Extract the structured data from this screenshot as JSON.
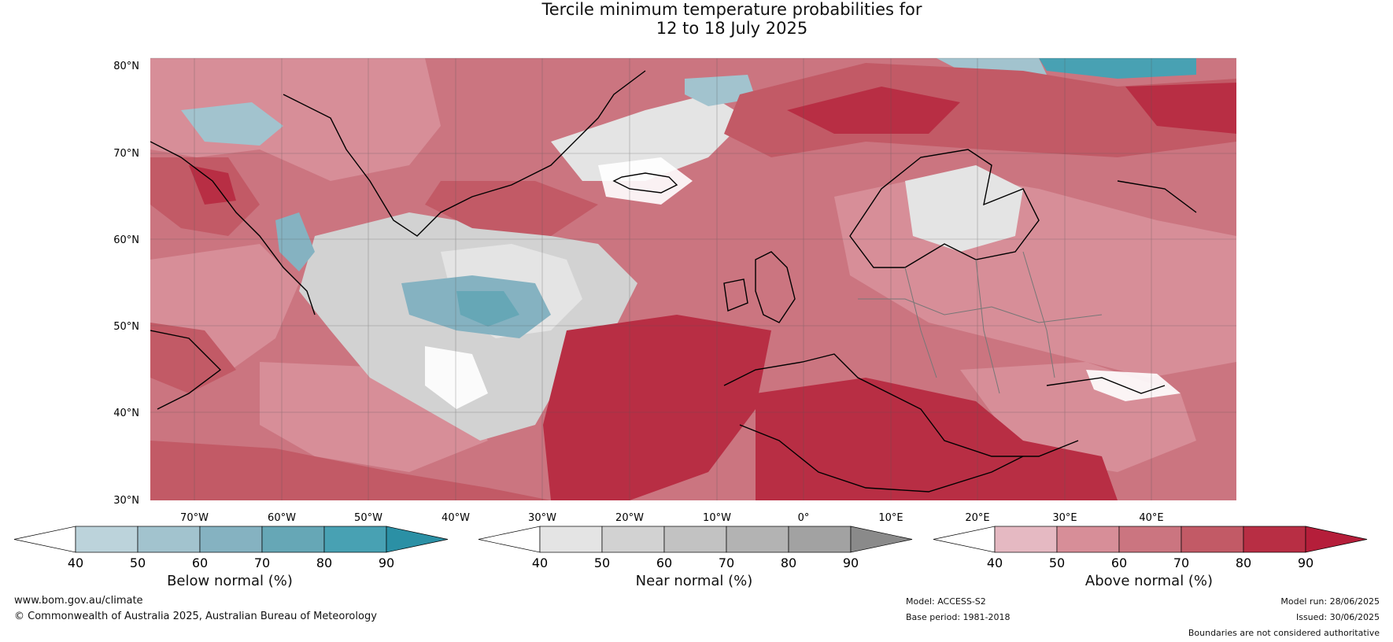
{
  "title_line1": "Tercile minimum temperature probabilities for",
  "title_line2": "12 to 18 July 2025",
  "lat_ticks": [
    "80°N",
    "70°N",
    "60°N",
    "50°N",
    "40°N",
    "30°N"
  ],
  "lon_ticks": [
    "70°W",
    "60°W",
    "50°W",
    "40°W",
    "30°W",
    "20°W",
    "10°W",
    "0°",
    "10°E",
    "20°E",
    "30°E",
    "40°E"
  ],
  "colorbars": [
    {
      "label": "Below normal (%)",
      "ticks": [
        "40",
        "50",
        "60",
        "70",
        "80",
        "90"
      ],
      "colors": [
        "#ffffff",
        "#bcd3db",
        "#a2c3ce",
        "#85b2c1",
        "#66a7b6",
        "#48a1b3",
        "#2b90a5"
      ]
    },
    {
      "label": "Near normal (%)",
      "ticks": [
        "40",
        "50",
        "60",
        "70",
        "80",
        "90"
      ],
      "colors": [
        "#ffffff",
        "#e4e4e4",
        "#d2d2d2",
        "#c2c2c2",
        "#b3b3b3",
        "#a2a2a2",
        "#8a8a8a"
      ]
    },
    {
      "label": "Above normal (%)",
      "ticks": [
        "40",
        "50",
        "60",
        "70",
        "80",
        "90"
      ],
      "colors": [
        "#ffffff",
        "#e5b9c2",
        "#d78e98",
        "#cb7580",
        "#c25a66",
        "#b82e44",
        "#b51e3a"
      ]
    }
  ],
  "footer": {
    "website": "www.bom.gov.au/climate",
    "copyright": "© Commonwealth of Australia 2025, Australian Bureau of Meteorology",
    "model": "Model: ACCESS-S2",
    "base_period": "Base period: 1981-2018",
    "model_run": "Model run: 28/06/2025",
    "issued": "Issued: 30/06/2025",
    "disclaimer": "Boundaries are not considered authoritative"
  }
}
